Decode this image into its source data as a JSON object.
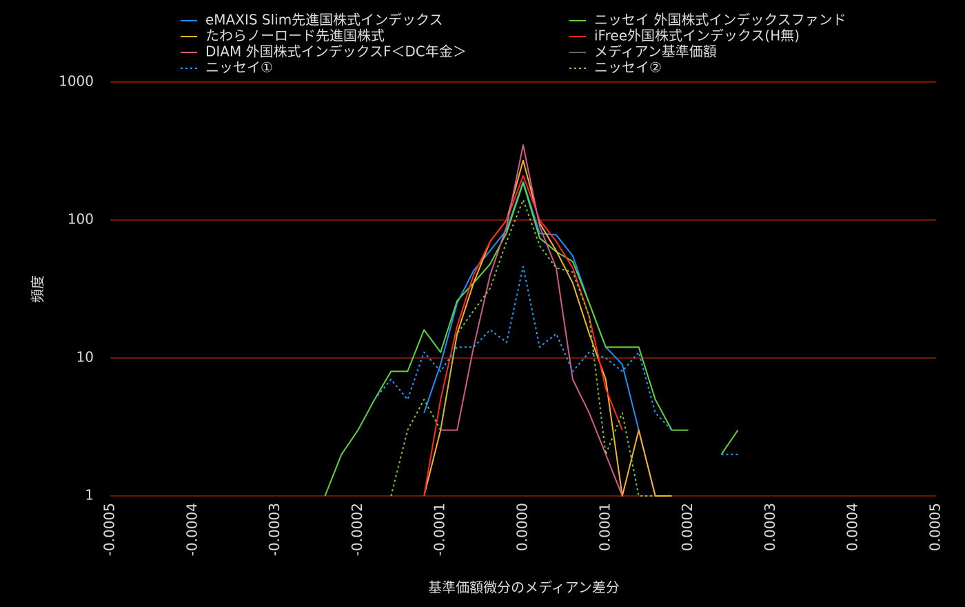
{
  "chart_data": {
    "type": "line",
    "xlabel": "基準価額微分のメディアン差分",
    "ylabel": "頻度",
    "log_y": true,
    "grid": true,
    "grid_color": "#a01e00",
    "xlim": [
      -0.0005,
      0.0005
    ],
    "ylim": [
      1,
      1000
    ],
    "xticks": [
      -0.0005,
      -0.0004,
      -0.0003,
      -0.0002,
      -0.0001,
      {
        "value": 0,
        "label": "0.0000"
      },
      0.0001,
      0.0002,
      0.0003,
      0.0004,
      0.0005
    ],
    "yticks": [
      1,
      10,
      100,
      1000
    ],
    "x": [
      -0.00024,
      -0.00022,
      -0.0002,
      -0.00018,
      -0.00016,
      -0.00014,
      -0.00012,
      -0.0001,
      -8e-05,
      -6e-05,
      -4e-05,
      -2e-05,
      0,
      2e-05,
      4e-05,
      6e-05,
      8e-05,
      0.0001,
      0.00012,
      0.00014,
      0.00016,
      0.00018,
      0.0002,
      0.00022,
      0.00024,
      0.00026
    ],
    "series": [
      {
        "name": "eMAXIS Slim先進国株式インデックス",
        "color": "#1f8fff",
        "style": "solid",
        "values": [
          null,
          null,
          null,
          null,
          null,
          null,
          4,
          9,
          25,
          43,
          60,
          85,
          190,
          80,
          78,
          55,
          25,
          12,
          9,
          3,
          1,
          null,
          null,
          null,
          null,
          null
        ]
      },
      {
        "name": "ニッセイ 外国株式インデックスファンド",
        "color": "#5fd33a",
        "style": "solid",
        "values": [
          1,
          2,
          3,
          5,
          8,
          8,
          16,
          11,
          26,
          35,
          48,
          81,
          186,
          74,
          59,
          50,
          25,
          12,
          12,
          12,
          5,
          3,
          3,
          null,
          2,
          3
        ]
      },
      {
        "name": "たわらノーロード先進国株式",
        "color": "#f5b52a",
        "style": "solid",
        "values": [
          null,
          null,
          null,
          null,
          null,
          null,
          1,
          3,
          15,
          35,
          70,
          100,
          270,
          95,
          60,
          35,
          15,
          7,
          1,
          3,
          1,
          1,
          null,
          null,
          null,
          null
        ]
      },
      {
        "name": "iFree外国株式インデックス(H無)",
        "color": "#ff2a1a",
        "style": "solid",
        "values": [
          null,
          null,
          null,
          null,
          null,
          null,
          1,
          5,
          17,
          40,
          70,
          100,
          210,
          100,
          70,
          45,
          20,
          6,
          3,
          null,
          null,
          null,
          null,
          null,
          null,
          null
        ]
      },
      {
        "name": "DIAM 外国株式インデックスF＜DC年金＞",
        "color": "#d45a8a",
        "style": "solid",
        "values": [
          null,
          null,
          null,
          null,
          null,
          null,
          null,
          3,
          3,
          12,
          40,
          90,
          350,
          90,
          45,
          7,
          4,
          2,
          1,
          null,
          null,
          null,
          null,
          null,
          null,
          null
        ]
      },
      {
        "name": "メディアン基準価額",
        "color": "#666666",
        "style": "solid",
        "values": [
          null,
          null,
          null,
          null,
          null,
          null,
          null,
          null,
          null,
          null,
          null,
          null,
          null,
          null,
          null,
          null,
          null,
          null,
          null,
          null,
          null,
          null,
          null,
          null,
          null,
          null
        ]
      },
      {
        "name": "ニッセイ①",
        "color": "#1aa8ff",
        "style": "dotted",
        "values": [
          null,
          null,
          null,
          5,
          7,
          5,
          11,
          8,
          12,
          12,
          16,
          13,
          46,
          12,
          15,
          8,
          11,
          10,
          8,
          11,
          4,
          3,
          null,
          null,
          2,
          2
        ]
      },
      {
        "name": "ニッセイ②",
        "color": "#7acd3a",
        "style": "dotted",
        "values": [
          null,
          null,
          null,
          null,
          1,
          3,
          5,
          3,
          15,
          22,
          32,
          70,
          140,
          65,
          45,
          42,
          20,
          2,
          4,
          1,
          1,
          null,
          null,
          null,
          null,
          null
        ]
      }
    ]
  }
}
